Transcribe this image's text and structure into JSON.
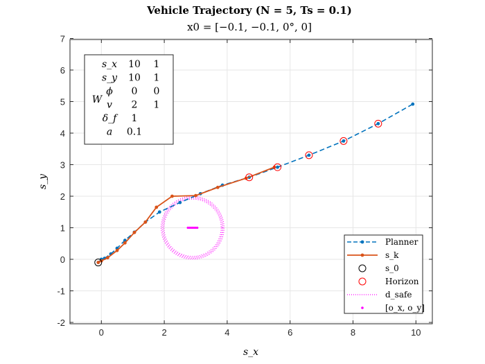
{
  "chart_data": {
    "type": "line",
    "title": "Vehicle Trajectory (N = 5, Ts = 0.1)",
    "subtitle": "x0 = [−0.1, −0.1, 0°, 0]",
    "xlabel": "s_x",
    "ylabel": "s_y",
    "xlim": [
      -1,
      10.6
    ],
    "ylim": [
      -2.1,
      7.1
    ],
    "xticks": [
      "0",
      "2",
      "4",
      "6",
      "8",
      "10"
    ],
    "yticks": [
      "-2",
      "-1",
      "0",
      "1",
      "2",
      "3",
      "4",
      "5",
      "6",
      "7"
    ],
    "xtick_values": [
      0,
      2,
      4,
      6,
      8,
      10
    ],
    "ytick_values": [
      -2,
      -1,
      0,
      1,
      2,
      3,
      4,
      5,
      6,
      7
    ],
    "grid": true,
    "legend_position": "bottom-right",
    "series": [
      {
        "name": "Planner",
        "color": "#0072BD",
        "style": "dashed-dot-markers",
        "x": [
          -0.1,
          0.0,
          0.1,
          0.3,
          0.5,
          0.75,
          1.05,
          1.4,
          1.85,
          2.5,
          3.15,
          3.85,
          4.7,
          5.6,
          6.6,
          7.7,
          8.8,
          9.9
        ],
        "y": [
          -0.1,
          0.0,
          0.03,
          0.17,
          0.35,
          0.6,
          0.86,
          1.18,
          1.5,
          1.8,
          2.08,
          2.35,
          2.6,
          2.92,
          3.3,
          3.75,
          4.3,
          4.92
        ]
      },
      {
        "name": "s_k",
        "color": "#D95319",
        "style": "solid-dot-markers",
        "x": [
          -0.1,
          0.0,
          0.2,
          0.5,
          0.75,
          1.05,
          1.4,
          1.75,
          2.25,
          3.0,
          3.7,
          4.6,
          5.5
        ],
        "y": [
          -0.1,
          -0.05,
          0.05,
          0.28,
          0.52,
          0.85,
          1.18,
          1.65,
          2.0,
          2.02,
          2.28,
          2.57,
          2.92
        ]
      }
    ],
    "start": {
      "name": "s_0",
      "x": -0.1,
      "y": -0.1,
      "color": "#000000"
    },
    "horizon": {
      "name": "Horizon",
      "color": "#FF0000",
      "x": [
        4.7,
        5.6,
        6.6,
        7.7,
        8.8
      ],
      "y": [
        2.6,
        2.92,
        3.3,
        3.75,
        4.3
      ]
    },
    "safety_circle": {
      "name": "d_safe",
      "color": "#FF00FF",
      "cx": 2.9,
      "cy": 1.0,
      "r": 1.0
    },
    "obstacle": {
      "name": "[o_x, o_y]",
      "color": "#FF00FF",
      "x": [
        2.75,
        2.8,
        2.85,
        2.9,
        2.95,
        3.0,
        3.05
      ],
      "y": [
        1.0,
        1.0,
        1.0,
        1.0,
        1.0,
        1.0,
        1.0
      ]
    },
    "weights_box": {
      "label": "W",
      "rows": [
        {
          "name": "s_x",
          "v1": "10",
          "v2": "1"
        },
        {
          "name": "s_y",
          "v1": "10",
          "v2": "1"
        },
        {
          "name": "ϕ",
          "v1": "0",
          "v2": "0"
        },
        {
          "name": "v",
          "v1": "2",
          "v2": "1"
        },
        {
          "name": "δ_f",
          "v1": "1",
          "v2": ""
        },
        {
          "name": "a",
          "v1": "0.1",
          "v2": ""
        }
      ]
    },
    "legend": [
      {
        "key": "planner",
        "label": "Planner"
      },
      {
        "key": "sk",
        "label": "s_k"
      },
      {
        "key": "s0",
        "label": "s_0"
      },
      {
        "key": "horizon",
        "label": "Horizon"
      },
      {
        "key": "dsafe",
        "label": "d_safe"
      },
      {
        "key": "obs",
        "label": "[o_x, o_y]"
      }
    ]
  }
}
